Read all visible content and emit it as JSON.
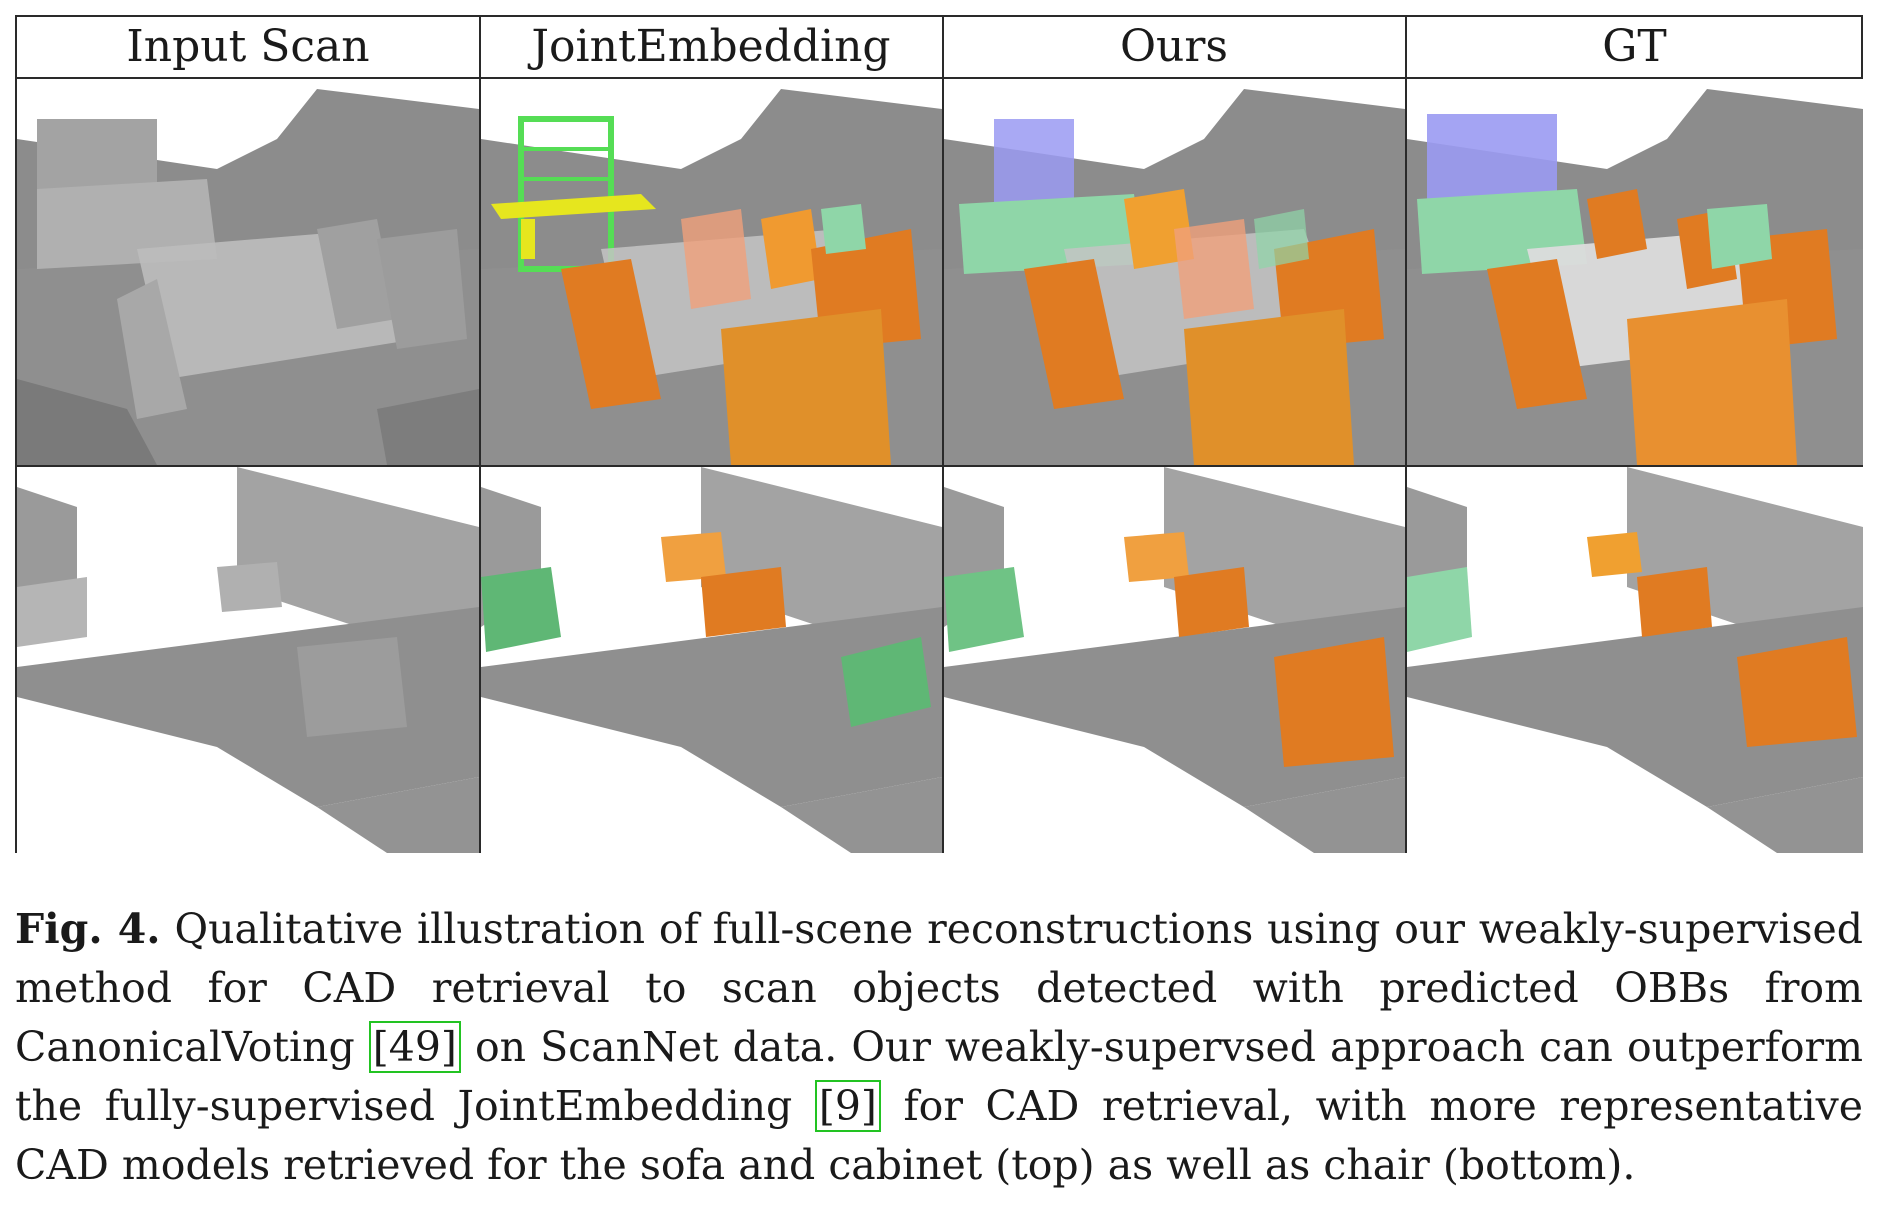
{
  "columns": [
    "Input Scan",
    "JointEmbedding",
    "Ours",
    "GT"
  ],
  "colors": {
    "scan_gray": "#9a9a9a",
    "chair_orange": "#e07b22",
    "sofa_green": "#8fd6a8",
    "cabinet_blue": "#9a9af2",
    "bookshelf_green": "#55dd55",
    "table_yellow": "#e6e61e",
    "table_white": "#dcdcdc"
  },
  "caption": {
    "label": "Fig. 4.",
    "part1": "Qualitative illustration of full-scene reconstructions using our weakly-supervised method for CAD retrieval to scan objects detected with predicted OBBs from CanonicalVoting ",
    "cite1": "[49]",
    "part2": " on ScanNet data. Our weakly-supervsed approach can outperform the fully-supervised JointEmbedding ",
    "cite2": "[9]",
    "part3": " for CAD retrieval, with more representative CAD models retrieved for the sofa and cabinet (top) as well as chair (bottom)."
  }
}
